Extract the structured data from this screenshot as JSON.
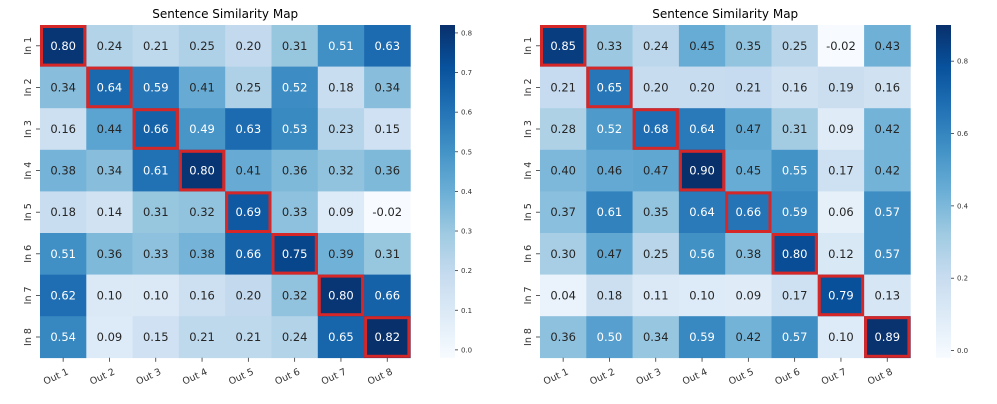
{
  "chart_data": [
    {
      "type": "heatmap",
      "title": "Sentence Similarity Map",
      "rows": [
        "In 1",
        "In 2",
        "In 3",
        "In 4",
        "In 5",
        "In 6",
        "In 7",
        "In 8"
      ],
      "columns": [
        "Out 1",
        "Out 2",
        "Out 3",
        "Out 4",
        "Out 5",
        "Out 6",
        "Out 7",
        "Out 8"
      ],
      "values": [
        [
          0.8,
          0.24,
          0.21,
          0.25,
          0.2,
          0.31,
          0.51,
          0.63
        ],
        [
          0.34,
          0.64,
          0.59,
          0.41,
          0.25,
          0.52,
          0.18,
          0.34
        ],
        [
          0.16,
          0.44,
          0.66,
          0.49,
          0.63,
          0.53,
          0.23,
          0.15
        ],
        [
          0.38,
          0.34,
          0.61,
          0.8,
          0.41,
          0.36,
          0.32,
          0.36
        ],
        [
          0.18,
          0.14,
          0.31,
          0.32,
          0.69,
          0.33,
          0.09,
          -0.02
        ],
        [
          0.51,
          0.36,
          0.33,
          0.38,
          0.66,
          0.75,
          0.39,
          0.31
        ],
        [
          0.62,
          0.1,
          0.1,
          0.16,
          0.2,
          0.32,
          0.8,
          0.66
        ],
        [
          0.54,
          0.09,
          0.15,
          0.21,
          0.21,
          0.24,
          0.65,
          0.82
        ]
      ],
      "highlighted": [
        [
          0,
          0
        ],
        [
          1,
          1
        ],
        [
          2,
          2
        ],
        [
          3,
          3
        ],
        [
          4,
          4
        ],
        [
          5,
          5
        ],
        [
          6,
          6
        ],
        [
          7,
          7
        ]
      ],
      "highlight_color": "#d62728",
      "colormap": "Blues",
      "vmin": -0.02,
      "vmax": 0.82,
      "colorbar_ticks": [
        "0.0",
        "0.1",
        "0.2",
        "0.3",
        "0.4",
        "0.5",
        "0.6",
        "0.7",
        "0.8"
      ]
    },
    {
      "type": "heatmap",
      "title": "Sentence Similarity Map",
      "rows": [
        "In 1",
        "In 2",
        "In 3",
        "In 4",
        "In 5",
        "In 6",
        "In 7",
        "In 8"
      ],
      "columns": [
        "Out 1",
        "Out 2",
        "Out 3",
        "Out 4",
        "Out 5",
        "Out 6",
        "Out 7",
        "Out 8"
      ],
      "values": [
        [
          0.85,
          0.33,
          0.24,
          0.45,
          0.35,
          0.25,
          -0.02,
          0.43
        ],
        [
          0.21,
          0.65,
          0.2,
          0.2,
          0.21,
          0.16,
          0.19,
          0.16
        ],
        [
          0.28,
          0.52,
          0.68,
          0.64,
          0.47,
          0.31,
          0.09,
          0.42
        ],
        [
          0.4,
          0.46,
          0.47,
          0.9,
          0.45,
          0.55,
          0.17,
          0.42
        ],
        [
          0.37,
          0.61,
          0.35,
          0.64,
          0.66,
          0.59,
          0.06,
          0.57
        ],
        [
          0.3,
          0.47,
          0.25,
          0.56,
          0.38,
          0.8,
          0.12,
          0.57
        ],
        [
          0.04,
          0.18,
          0.11,
          0.1,
          0.09,
          0.17,
          0.79,
          0.13
        ],
        [
          0.36,
          0.5,
          0.34,
          0.59,
          0.42,
          0.57,
          0.1,
          0.89
        ]
      ],
      "highlighted": [
        [
          0,
          0
        ],
        [
          1,
          1
        ],
        [
          2,
          2
        ],
        [
          3,
          3
        ],
        [
          4,
          4
        ],
        [
          5,
          5
        ],
        [
          6,
          6
        ],
        [
          7,
          7
        ]
      ],
      "highlight_color": "#d62728",
      "colormap": "Blues",
      "vmin": -0.02,
      "vmax": 0.9,
      "colorbar_ticks": [
        "0.0",
        "0.2",
        "0.4",
        "0.6",
        "0.8"
      ]
    }
  ]
}
